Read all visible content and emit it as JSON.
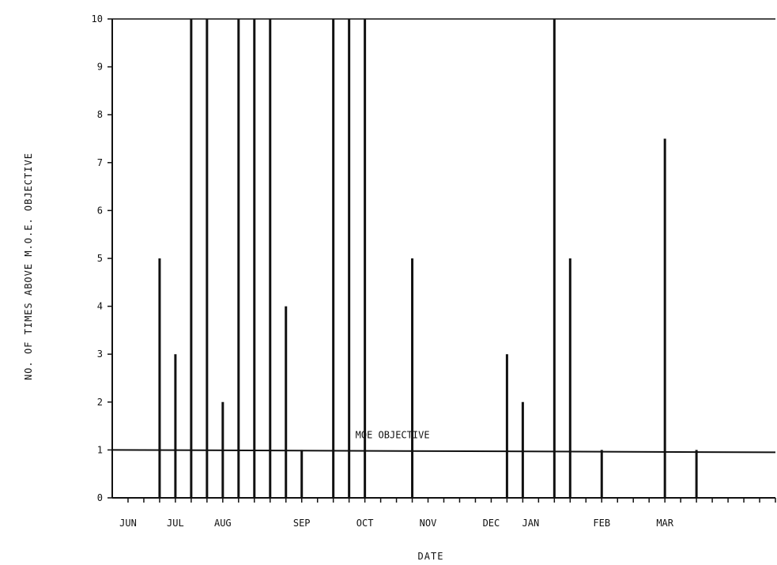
{
  "chart_data": {
    "type": "bar",
    "title": "",
    "xlabel": "DATE",
    "ylabel": "NO. OF TIMES ABOVE M.O.E. OBJECTIVE",
    "ylim": [
      0,
      10
    ],
    "yticks": [
      "0",
      "1",
      "2",
      "3",
      "4",
      "5",
      "6",
      "7",
      "8",
      "9",
      "10"
    ],
    "months": [
      "JUN",
      "JUL",
      "AUG",
      "SEP",
      "OCT",
      "NOV",
      "DEC",
      "JAN",
      "FEB",
      "MAR"
    ],
    "x_index_range": [
      0,
      42
    ],
    "month_positions": [
      1,
      4,
      7,
      12,
      16,
      20,
      24,
      26.5,
      31,
      35
    ],
    "bars": [
      {
        "x": 3,
        "value": 5
      },
      {
        "x": 4,
        "value": 3
      },
      {
        "x": 5,
        "value": 10
      },
      {
        "x": 6,
        "value": 10
      },
      {
        "x": 7,
        "value": 2
      },
      {
        "x": 8,
        "value": 10
      },
      {
        "x": 9,
        "value": 10
      },
      {
        "x": 10,
        "value": 10
      },
      {
        "x": 11,
        "value": 4
      },
      {
        "x": 12,
        "value": 1
      },
      {
        "x": 14,
        "value": 10
      },
      {
        "x": 15,
        "value": 10
      },
      {
        "x": 16,
        "value": 10
      },
      {
        "x": 19,
        "value": 5
      },
      {
        "x": 25,
        "value": 3
      },
      {
        "x": 26,
        "value": 2
      },
      {
        "x": 28,
        "value": 10
      },
      {
        "x": 29,
        "value": 5
      },
      {
        "x": 31,
        "value": 1
      },
      {
        "x": 35,
        "value": 7.5
      },
      {
        "x": 37,
        "value": 1
      }
    ],
    "objective": {
      "label": "MOE OBJECTIVE",
      "value": 1
    },
    "grid": false,
    "legend": "none"
  }
}
